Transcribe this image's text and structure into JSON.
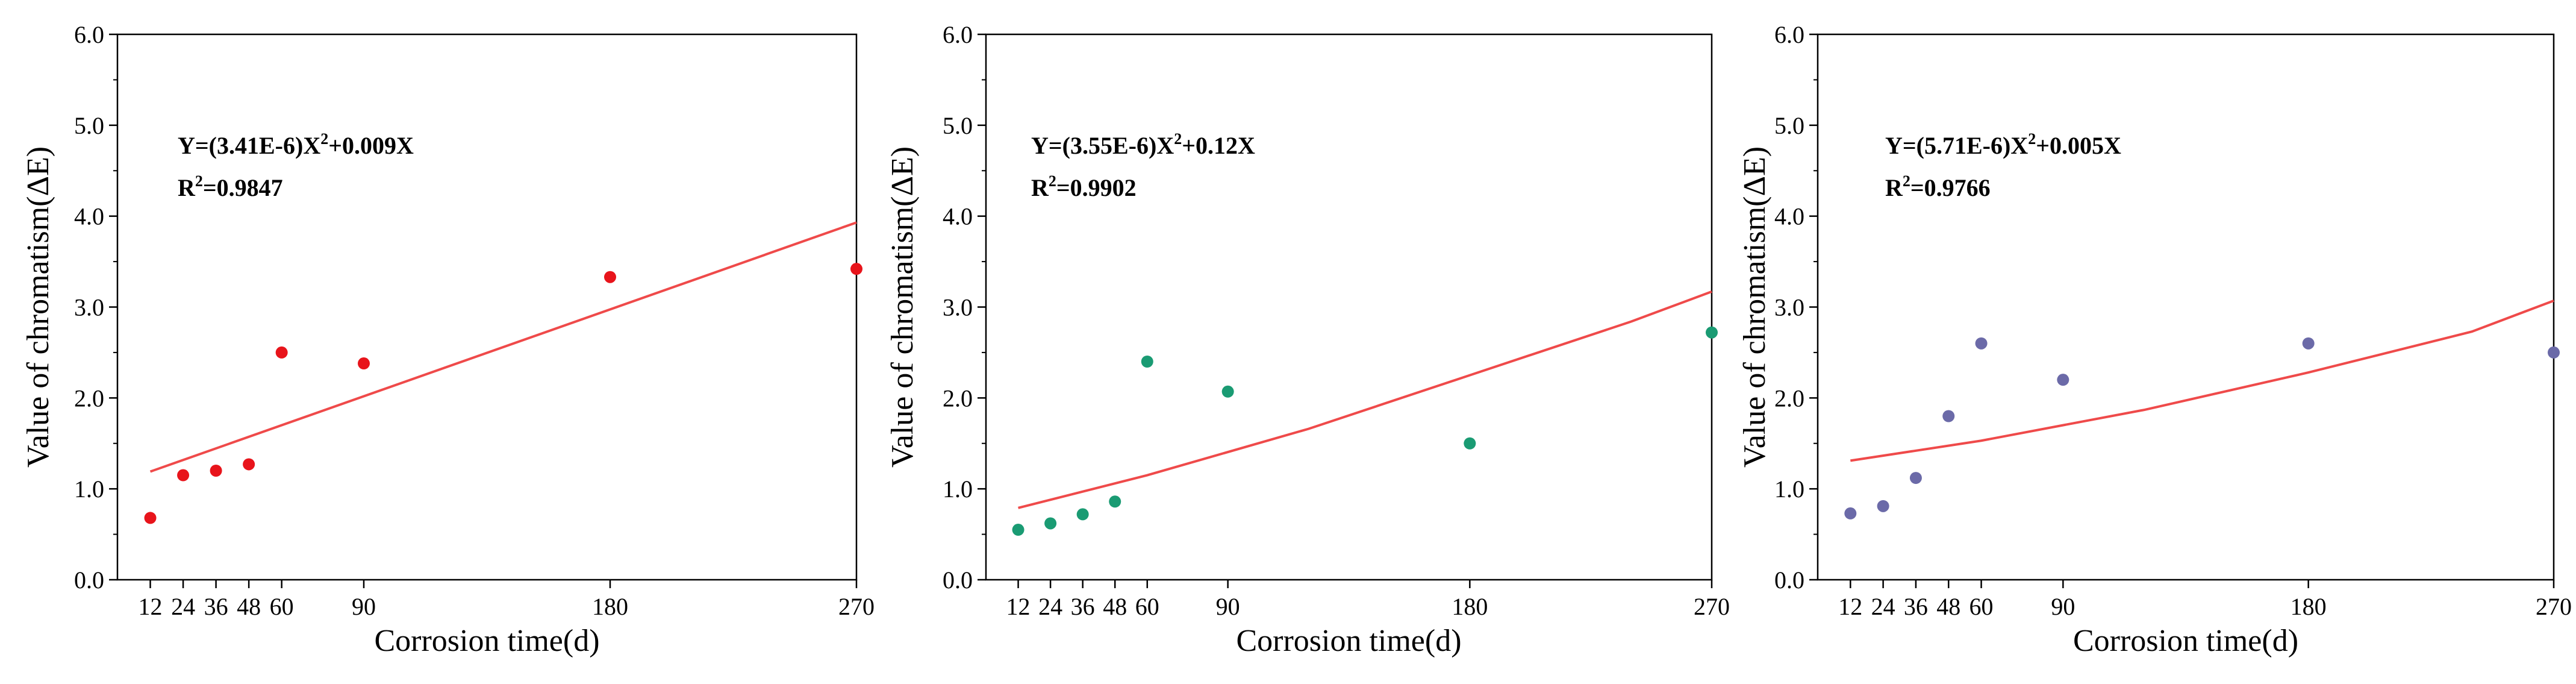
{
  "chart_data": [
    {
      "type": "scatter",
      "title": "",
      "xlabel": "Corrosion time(d)",
      "ylabel": "Value of chromatism(ΔE)",
      "xlim": [
        0,
        270
      ],
      "ylim": [
        0,
        6
      ],
      "xticks": [
        12,
        24,
        36,
        48,
        60,
        90,
        180,
        270
      ],
      "yticks": [
        0,
        1,
        2,
        3,
        4,
        5,
        6
      ],
      "ytick_labels": [
        "0.0",
        "1.0",
        "2.0",
        "3.0",
        "4.0",
        "5.0",
        "6.0"
      ],
      "marker_color": "#e8141b",
      "fit_color": "#ef4a4a",
      "points": [
        {
          "x": 12,
          "y": 0.68
        },
        {
          "x": 24,
          "y": 1.15
        },
        {
          "x": 36,
          "y": 1.2
        },
        {
          "x": 48,
          "y": 1.27
        },
        {
          "x": 60,
          "y": 2.5
        },
        {
          "x": 90,
          "y": 2.38
        },
        {
          "x": 180,
          "y": 3.33
        },
        {
          "x": 270,
          "y": 3.42
        }
      ],
      "fit_line": [
        {
          "x": 12,
          "y": 1.19
        },
        {
          "x": 270,
          "y": 3.93
        }
      ],
      "equation": {
        "prefix": "Y=(3.41E-6)X",
        "exponent": "2",
        "suffix": "+0.009X",
        "r2_label": "R",
        "r2_exponent": "2",
        "r2_value": "=0.9847"
      }
    },
    {
      "type": "scatter",
      "title": "",
      "xlabel": "Corrosion time(d)",
      "ylabel": "Value of chromatism(ΔE)",
      "xlim": [
        0,
        270
      ],
      "ylim": [
        0,
        6
      ],
      "xticks": [
        12,
        24,
        36,
        48,
        60,
        90,
        180,
        270
      ],
      "yticks": [
        0,
        1,
        2,
        3,
        4,
        5,
        6
      ],
      "ytick_labels": [
        "0.0",
        "1.0",
        "2.0",
        "3.0",
        "4.0",
        "5.0",
        "6.0"
      ],
      "marker_color": "#1a9b73",
      "fit_color": "#ef4a4a",
      "points": [
        {
          "x": 12,
          "y": 0.55
        },
        {
          "x": 24,
          "y": 0.62
        },
        {
          "x": 36,
          "y": 0.72
        },
        {
          "x": 48,
          "y": 0.86
        },
        {
          "x": 60,
          "y": 2.4
        },
        {
          "x": 90,
          "y": 2.07
        },
        {
          "x": 180,
          "y": 1.5
        },
        {
          "x": 270,
          "y": 2.72
        }
      ],
      "fit_line": [
        {
          "x": 12,
          "y": 0.79
        },
        {
          "x": 60,
          "y": 1.15
        },
        {
          "x": 120,
          "y": 1.66
        },
        {
          "x": 180,
          "y": 2.25
        },
        {
          "x": 240,
          "y": 2.84
        },
        {
          "x": 270,
          "y": 3.17
        }
      ],
      "equation": {
        "prefix": "Y=(3.55E-6)X",
        "exponent": "2",
        "suffix": "+0.12X",
        "r2_label": "R",
        "r2_exponent": "2",
        "r2_value": "=0.9902"
      }
    },
    {
      "type": "scatter",
      "title": "",
      "xlabel": "Corrosion time(d)",
      "ylabel": "Value of chromatism(ΔE)",
      "xlim": [
        0,
        270
      ],
      "ylim": [
        0,
        6
      ],
      "xticks": [
        12,
        24,
        36,
        48,
        60,
        90,
        180,
        270
      ],
      "yticks": [
        0,
        1,
        2,
        3,
        4,
        5,
        6
      ],
      "ytick_labels": [
        "0.0",
        "1.0",
        "2.0",
        "3.0",
        "4.0",
        "5.0",
        "6.0"
      ],
      "marker_color": "#6b6aa8",
      "fit_color": "#ef4a4a",
      "points": [
        {
          "x": 12,
          "y": 0.73
        },
        {
          "x": 24,
          "y": 0.81
        },
        {
          "x": 36,
          "y": 1.12
        },
        {
          "x": 48,
          "y": 1.8
        },
        {
          "x": 60,
          "y": 2.6
        },
        {
          "x": 90,
          "y": 2.2
        },
        {
          "x": 180,
          "y": 2.6
        },
        {
          "x": 270,
          "y": 2.5
        }
      ],
      "fit_line": [
        {
          "x": 12,
          "y": 1.31
        },
        {
          "x": 60,
          "y": 1.53
        },
        {
          "x": 120,
          "y": 1.87
        },
        {
          "x": 180,
          "y": 2.28
        },
        {
          "x": 240,
          "y": 2.73
        },
        {
          "x": 270,
          "y": 3.07
        }
      ],
      "equation": {
        "prefix": "Y=(5.71E-6)X",
        "exponent": "2",
        "suffix": "+0.005X",
        "r2_label": "R",
        "r2_exponent": "2",
        "r2_value": "=0.9766"
      }
    }
  ]
}
